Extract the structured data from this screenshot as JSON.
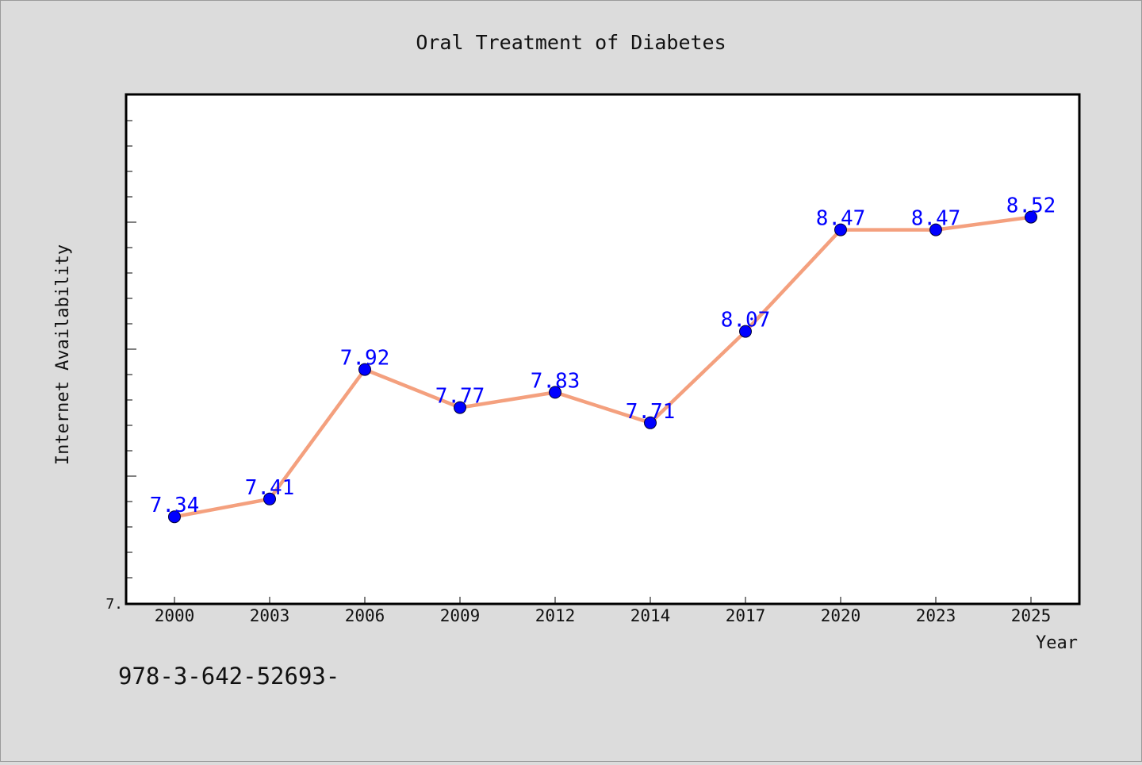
{
  "chart_data": {
    "type": "line",
    "title": "Oral Treatment of Diabetes",
    "xlabel": "Year",
    "ylabel": "Internet Availability",
    "categories": [
      "2000",
      "2003",
      "2006",
      "2009",
      "2012",
      "2014",
      "2017",
      "2020",
      "2023",
      "2025"
    ],
    "series": [
      {
        "values": [
          7.34,
          7.41,
          7.92,
          7.77,
          7.83,
          7.71,
          8.07,
          8.47,
          8.47,
          8.52
        ]
      }
    ],
    "y_tick_label": "7.",
    "ylim": [
      7.0,
      9.0
    ],
    "grid": false,
    "line_color": "#f4a07e",
    "marker_color": "#0000ff",
    "label_color": "#0000ff"
  },
  "footer_code": "978-3-642-52693-"
}
